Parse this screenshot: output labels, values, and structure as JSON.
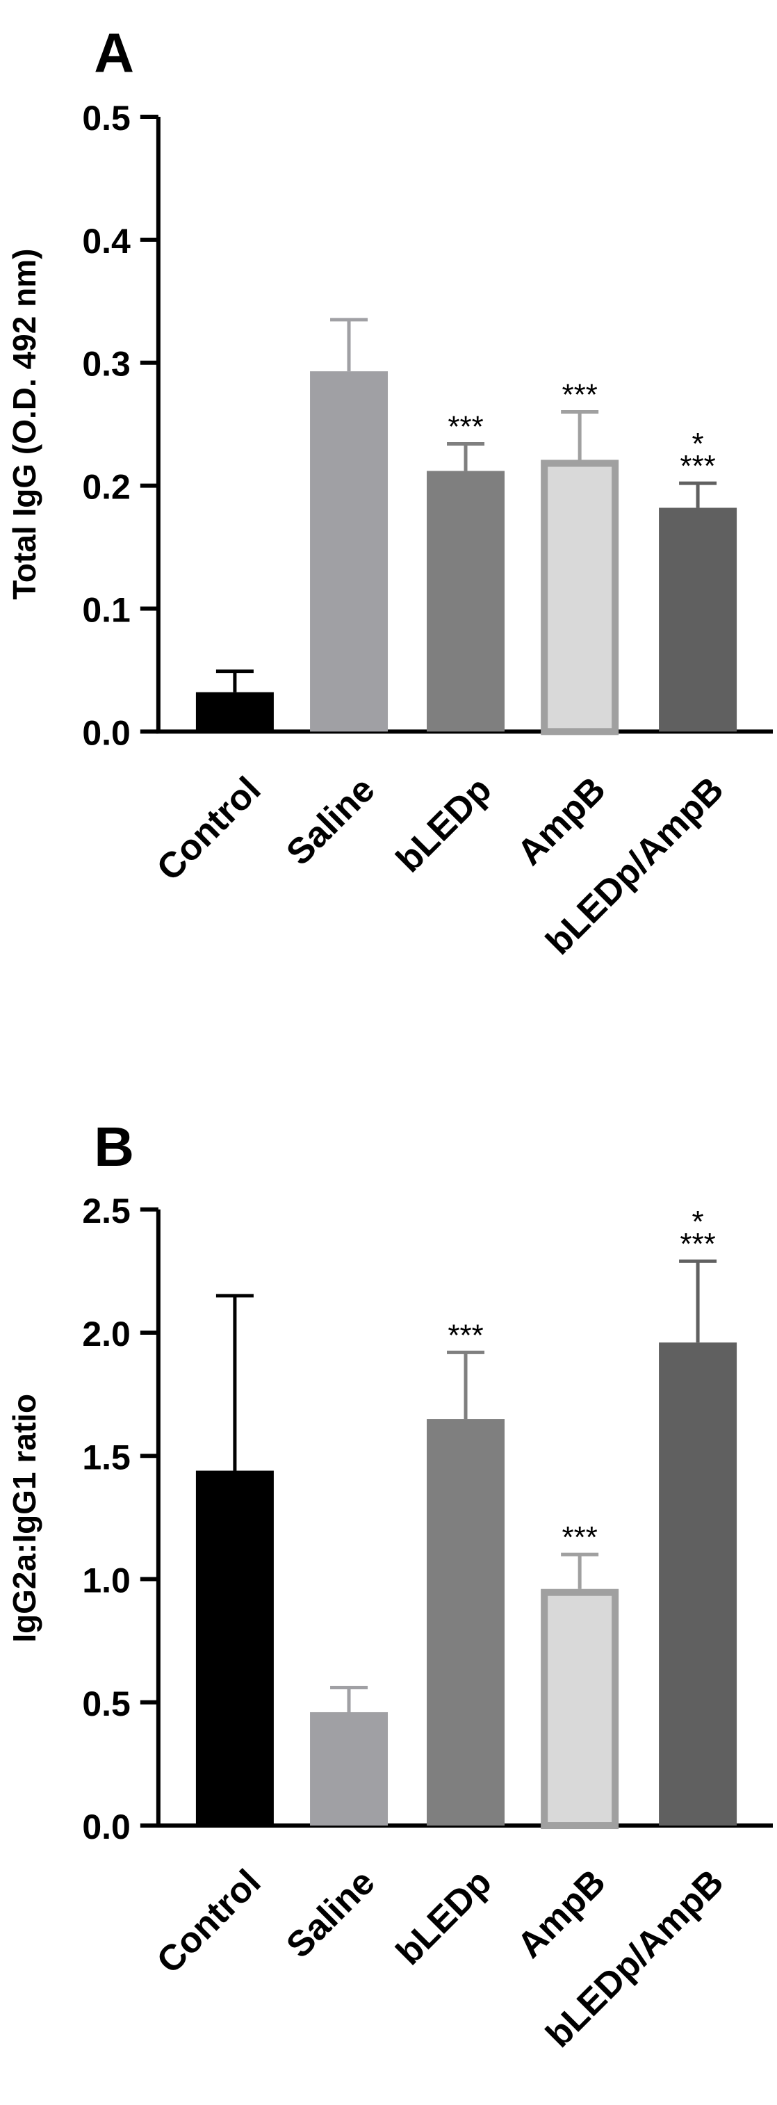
{
  "colors": {
    "axis": "#000000",
    "control": "#000000",
    "saline": "#a0a0a4",
    "bledp": "#7f7f7f",
    "ampb_fill": "#d9d9d9",
    "ampb_edge": "#a0a0a0",
    "bledp_ampb": "#606060"
  },
  "chart_data": [
    {
      "panel": "A",
      "type": "bar",
      "ylabel": "Total IgG (O.D. 492 nm)",
      "xlabel": "",
      "ylim": [
        0,
        0.5
      ],
      "yticks": [
        "0.0",
        "0.1",
        "0.2",
        "0.3",
        "0.4",
        "0.5"
      ],
      "grid": false,
      "categories": [
        "Control",
        "Saline",
        "bLEDp",
        "AmpB",
        "bLEDp/AmpB"
      ],
      "values": [
        0.032,
        0.293,
        0.212,
        0.221,
        0.182
      ],
      "errors": [
        0.017,
        0.042,
        0.022,
        0.039,
        0.02
      ],
      "significance": [
        "",
        "",
        "***",
        "***",
        "*\n***"
      ]
    },
    {
      "panel": "B",
      "type": "bar",
      "ylabel": "IgG2a:IgG1 ratio",
      "xlabel": "",
      "ylim": [
        0,
        2.5
      ],
      "yticks": [
        "0.0",
        "0.5",
        "1.0",
        "1.5",
        "2.0",
        "2.5"
      ],
      "grid": false,
      "categories": [
        "Control",
        "Saline",
        "bLEDp",
        "AmpB",
        "bLEDp/AmpB"
      ],
      "values": [
        1.44,
        0.46,
        1.65,
        0.96,
        1.96
      ],
      "errors": [
        0.71,
        0.1,
        0.27,
        0.14,
        0.33
      ],
      "significance": [
        "",
        "",
        "***",
        "***",
        "*\n***"
      ]
    }
  ]
}
